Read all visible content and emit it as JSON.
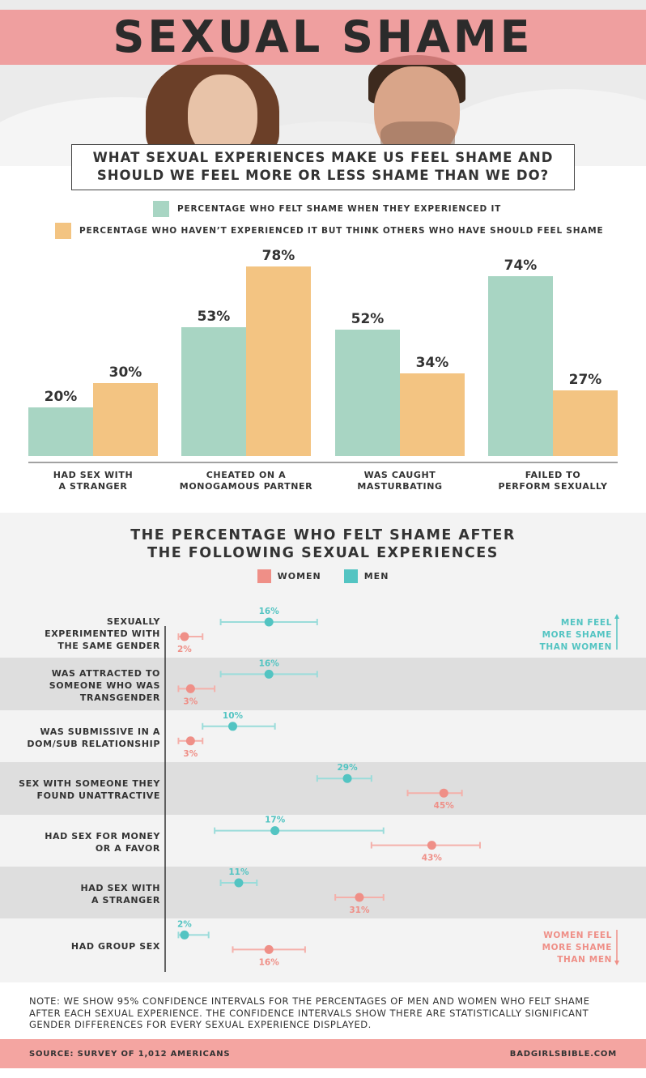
{
  "title": "SEXUAL SHAME",
  "question": [
    "WHAT SEXUAL EXPERIENCES MAKE US FEEL SHAME AND",
    "SHOULD WE FEEL MORE OR LESS SHAME THAN WE DO?"
  ],
  "colors": {
    "green": "#a8d5c3",
    "orange": "#f3c482",
    "women": "#ef8f87",
    "men": "#53c4c2",
    "women_ci": "#f4b0aa",
    "men_ci": "#9adcda",
    "title_band": "#f08c8c",
    "footer": "#f4a5a1"
  },
  "hero": {
    "description_icons": [
      "woman-in-bed",
      "man-in-bed"
    ]
  },
  "chart_data": [
    {
      "type": "bar",
      "categories": [
        [
          "HAD SEX WITH",
          "A STRANGER"
        ],
        [
          "CHEATED ON A",
          "MONOGAMOUS PARTNER"
        ],
        [
          "WAS CAUGHT",
          "MASTURBATING"
        ],
        [
          "FAILED TO",
          "PERFORM SEXUALLY"
        ]
      ],
      "series": [
        {
          "name": "PERCENTAGE WHO FELT SHAME WHEN THEY EXPERIENCED IT",
          "values": [
            20,
            53,
            52,
            74
          ]
        },
        {
          "name": "PERCENTAGE WHO HAVEN’T EXPERIENCED IT BUT THINK OTHERS WHO HAVE SHOULD FEEL SHAME",
          "values": [
            30,
            78,
            34,
            27
          ]
        }
      ],
      "value_suffix": "%",
      "ylim": [
        0,
        80
      ]
    },
    {
      "type": "scatter",
      "title": [
        "THE PERCENTAGE WHO FELT SHAME AFTER",
        "THE FOLLOWING SEXUAL EXPERIENCES"
      ],
      "legend": [
        "WOMEN",
        "MEN"
      ],
      "rows": [
        {
          "label": [
            "SEXUALLY",
            "EXPERIMENTED WITH",
            "THE SAME GENDER"
          ],
          "men": 16,
          "men_ci": [
            8,
            24
          ],
          "women": 2,
          "women_ci": [
            1,
            5
          ]
        },
        {
          "label": [
            "WAS ATTRACTED TO",
            "SOMEONE WHO WAS",
            "TRANSGENDER"
          ],
          "men": 16,
          "men_ci": [
            8,
            24
          ],
          "women": 3,
          "women_ci": [
            1,
            7
          ]
        },
        {
          "label": [
            "WAS SUBMISSIVE IN A",
            "DOM/SUB RELATIONSHIP"
          ],
          "men": 10,
          "men_ci": [
            5,
            17
          ],
          "women": 3,
          "women_ci": [
            1,
            5
          ]
        },
        {
          "label": [
            "SEX WITH SOMEONE THEY",
            "FOUND UNATTRACTIVE"
          ],
          "men": 29,
          "men_ci": [
            24,
            33
          ],
          "women": 45,
          "women_ci": [
            39,
            48
          ]
        },
        {
          "label": [
            "HAD SEX FOR MONEY",
            "OR A FAVOR"
          ],
          "men": 17,
          "men_ci": [
            7,
            35
          ],
          "women": 43,
          "women_ci": [
            33,
            51
          ]
        },
        {
          "label": [
            "HAD SEX WITH",
            "A STRANGER"
          ],
          "men": 11,
          "men_ci": [
            8,
            14
          ],
          "women": 31,
          "women_ci": [
            27,
            35
          ]
        },
        {
          "label": [
            "HAD GROUP SEX"
          ],
          "men": 2,
          "men_ci": [
            1,
            6
          ],
          "women": 16,
          "women_ci": [
            10,
            22
          ]
        }
      ],
      "value_suffix": "%",
      "xlim": [
        0,
        50
      ]
    }
  ],
  "notes": {
    "men": [
      "MEN FEEL",
      "MORE SHAME",
      "THAN WOMEN"
    ],
    "women": [
      "WOMEN FEEL",
      "MORE SHAME",
      "THAN MEN"
    ]
  },
  "footnote": "NOTE: WE SHOW 95% CONFIDENCE INTERVALS FOR THE PERCENTAGES OF MEN AND WOMEN WHO FELT SHAME AFTER EACH SEXUAL EXPERIENCE. THE CONFIDENCE INTERVALS SHOW THERE ARE STATISTICALLY SIGNIFICANT GENDER DIFFERENCES FOR EVERY SEXUAL EXPERIENCE DISPLAYED.",
  "footer": {
    "source": "SOURCE: SURVEY OF 1,012 AMERICANS",
    "site": "BADGIRLSBIBLE.COM"
  }
}
